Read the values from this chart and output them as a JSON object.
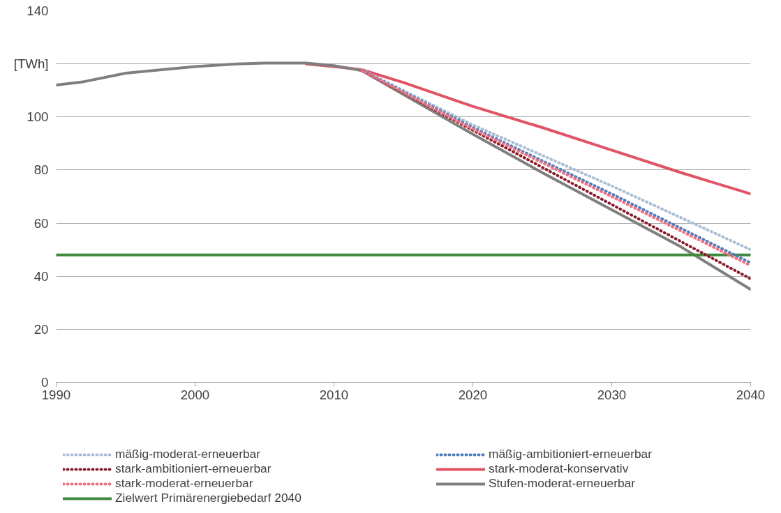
{
  "chart_data": {
    "type": "line",
    "xlim": [
      1990,
      2040
    ],
    "xticks": [
      1990,
      2000,
      2010,
      2020,
      2030,
      2040
    ],
    "ylim": [
      0,
      140
    ],
    "yticks": [
      0,
      20,
      40,
      60,
      80,
      100,
      {
        "value": 120,
        "label": "[TWh]"
      },
      140
    ],
    "grid": "y",
    "legend": "bottom",
    "series": [
      {
        "name": "mäßig-moderat-erneuerbar",
        "color": "#a9bdd3",
        "line_style": "dotted",
        "x": [
          2012,
          2020,
          2030,
          2040
        ],
        "values": [
          117.8,
          97,
          74,
          50
        ]
      },
      {
        "name": "mäßig-ambitioniert-erneuerbar",
        "color": "#4f7cc0",
        "line_style": "dotted",
        "x": [
          2012,
          2020,
          2030,
          2040
        ],
        "values": [
          117.6,
          96,
          71,
          45
        ]
      },
      {
        "name": "stark-ambitioniert-erneuerbar",
        "color": "#8b1a2a",
        "line_style": "dotted",
        "x": [
          2012,
          2020,
          2030,
          2040
        ],
        "values": [
          117.5,
          95,
          67,
          39
        ]
      },
      {
        "name": "stark-moderat-konservativ",
        "color": "#e05466",
        "line_style": "solid",
        "x": [
          2008,
          2010,
          2012,
          2015,
          2020,
          2025,
          2030,
          2035,
          2040
        ],
        "values": [
          120,
          119,
          117.8,
          113,
          104,
          96,
          87.5,
          79,
          71
        ]
      },
      {
        "name": "stark-moderat-erneuerbar",
        "color": "#f0707e",
        "line_style": "dotted",
        "x": [
          2012,
          2020,
          2030,
          2040
        ],
        "values": [
          117.5,
          95.5,
          70,
          44
        ]
      },
      {
        "name": "Stufen-moderat-erneuerbar",
        "color": "#7f7f7f",
        "line_style": "solid",
        "x": [
          1990,
          1992,
          1995,
          1998,
          2000,
          2003,
          2005,
          2008,
          2010,
          2012,
          2020,
          2025,
          2030,
          2035,
          2040
        ],
        "values": [
          112,
          113.3,
          116.5,
          118,
          119,
          120,
          120.3,
          120.3,
          119.3,
          117.5,
          93.5,
          79,
          65,
          51,
          35
        ]
      },
      {
        "name": "Zielwert Primärenergiebedarf 2040",
        "color": "#3e8a3e",
        "line_style": "solid",
        "x": [
          1990,
          2040
        ],
        "values": [
          48,
          48
        ]
      }
    ]
  }
}
